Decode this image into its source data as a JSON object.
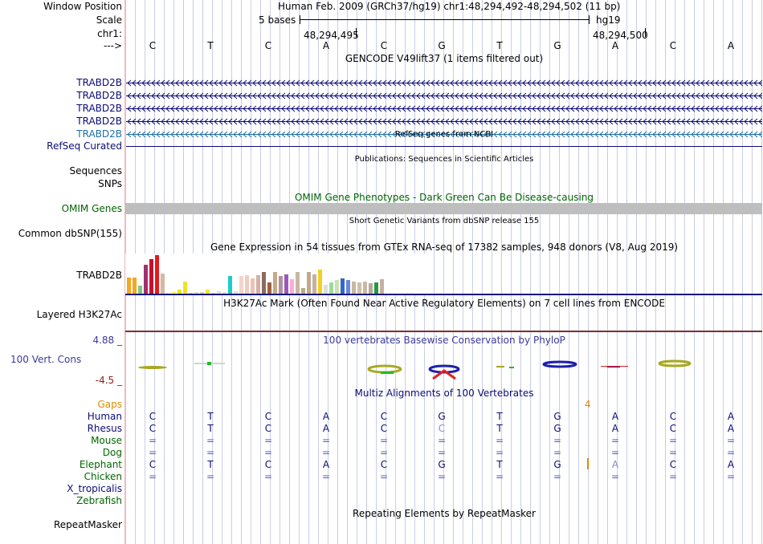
{
  "header": {
    "labels": {
      "window_position": "Window Position",
      "scale": "Scale",
      "chr": "chr1:",
      "arrow": "--->"
    },
    "assembly_position": "Human Feb. 2009 (GRCh37/hg19)   chr1:48,294,492-48,294,502 (11 bp)",
    "scale_text": "5 bases",
    "scale_db": "hg19",
    "coord_left": "48,294,495",
    "coord_right": "48,294,500",
    "sequence": [
      "C",
      "T",
      "C",
      "A",
      "C",
      "G",
      "T",
      "G",
      "A",
      "C",
      "A"
    ]
  },
  "gencode": {
    "title": "GENCODE V49lift37 (1 items filtered out)",
    "tracks": [
      {
        "label": "TRABD2B",
        "color": "#0c0c78"
      },
      {
        "label": "TRABD2B",
        "color": "#0c0c78"
      },
      {
        "label": "TRABD2B",
        "color": "#0c0c78"
      },
      {
        "label": "TRABD2B",
        "color": "#0c0c78"
      },
      {
        "label": "TRABD2B",
        "color": "#1e6fa8"
      }
    ]
  },
  "refseq": {
    "title": "RefSeq genes from NCBI",
    "label": "RefSeq Curated"
  },
  "publications": {
    "title": "Publications: Sequences in Scientific Articles",
    "label_sequences": "Sequences",
    "label_snps": "SNPs"
  },
  "omim": {
    "title": "OMIM Gene Phenotypes - Dark Green Can Be Disease-causing",
    "label": "OMIM Genes"
  },
  "dbsnp": {
    "title": "Short Genetic Variants from dbSNP release 155",
    "label": "Common dbSNP(155)"
  },
  "gtex": {
    "title": "Gene Expression in 54 tissues from GTEx RNA-seq of 17382 samples, 948 donors (V8, Aug 2019)",
    "label": "TRABD2B",
    "bars": [
      {
        "v": 0.42,
        "c": "#f5a623"
      },
      {
        "v": 0.42,
        "c": "#f5a623"
      },
      {
        "v": 0.2,
        "c": "#7fc97f"
      },
      {
        "v": 0.75,
        "c": "#a03070"
      },
      {
        "v": 0.9,
        "c": "#c8102e"
      },
      {
        "v": 1.0,
        "c": "#e41a1c"
      },
      {
        "v": 0.52,
        "c": "#d8b8a0"
      },
      {
        "v": 0.03,
        "c": "#eeeeee"
      },
      {
        "v": 0.06,
        "c": "#ffff66"
      },
      {
        "v": 0.1,
        "c": "#e6e600"
      },
      {
        "v": 0.32,
        "c": "#f0e030"
      },
      {
        "v": 0.03,
        "c": "#cccccc"
      },
      {
        "v": 0.05,
        "c": "#dddddd"
      },
      {
        "v": 0.05,
        "c": "#e0d0a0"
      },
      {
        "v": 0.1,
        "c": "#f0e040"
      },
      {
        "v": 0.03,
        "c": "#cccccc"
      },
      {
        "v": 0.06,
        "c": "#dddddd"
      },
      {
        "v": 0.05,
        "c": "#e0e0e0"
      },
      {
        "v": 0.46,
        "c": "#1ccdcd"
      },
      {
        "v": 0.06,
        "c": "#e0e0e0"
      },
      {
        "v": 0.46,
        "c": "#f4d4cc"
      },
      {
        "v": 0.48,
        "c": "#eeccc0"
      },
      {
        "v": 0.4,
        "c": "#f0c0b8"
      },
      {
        "v": 0.48,
        "c": "#d0b0a8"
      },
      {
        "v": 0.56,
        "c": "#8b6c5c"
      },
      {
        "v": 0.3,
        "c": "#a06040"
      },
      {
        "v": 0.56,
        "c": "#c8a888"
      },
      {
        "v": 0.45,
        "c": "#b090a0"
      },
      {
        "v": 0.5,
        "c": "#9b59b6"
      },
      {
        "v": 0.38,
        "c": "#ffaadd"
      },
      {
        "v": 0.56,
        "c": "#c8b8a0"
      },
      {
        "v": 0.15,
        "c": "#bbaa88"
      },
      {
        "v": 0.56,
        "c": "#c0a890"
      },
      {
        "v": 0.5,
        "c": "#c8b0a0"
      },
      {
        "v": 0.62,
        "c": "#f2d020"
      },
      {
        "v": 0.22,
        "c": "#dddddd"
      },
      {
        "v": 0.3,
        "c": "#99dd99"
      },
      {
        "v": 0.36,
        "c": "#cce0b0"
      },
      {
        "v": 0.4,
        "c": "#3366cc"
      },
      {
        "v": 0.36,
        "c": "#6688dd"
      },
      {
        "v": 0.32,
        "c": "#c8b8a0"
      },
      {
        "v": 0.3,
        "c": "#d0c0a8"
      },
      {
        "v": 0.32,
        "c": "#c8b8a8"
      },
      {
        "v": 0.28,
        "c": "#b8a898"
      },
      {
        "v": 0.3,
        "c": "#229944"
      },
      {
        "v": 0.38,
        "c": "#c8b0a0"
      }
    ]
  },
  "h3k27ac": {
    "title": "H3K27Ac Mark (Often Found Near Active Regulatory Elements) on 7 cell lines from ENCODE",
    "label": "Layered H3K27Ac"
  },
  "cons": {
    "title": "100 vertebrates Basewise Conservation by PhyloP",
    "label": "100 Vert. Cons",
    "ymax": "4.88 _",
    "ymin": "-4.5 _"
  },
  "multiz": {
    "title": "Multiz Alignments of 100 Vertebrates",
    "gap_count": "4",
    "species": [
      {
        "name": "Gaps",
        "color": "#e08a00",
        "bases": [
          "",
          "",
          "",
          "",
          "",
          "",
          "",
          "",
          "",
          "",
          ""
        ]
      },
      {
        "name": "Human",
        "color": "#0c0c78",
        "bases": [
          "C",
          "T",
          "C",
          "A",
          "C",
          "G",
          "T",
          "G",
          "A",
          "C",
          "A"
        ]
      },
      {
        "name": "Rhesus",
        "color": "#0c0c78",
        "bases": [
          "C",
          "T",
          "C",
          "A",
          "C",
          "C",
          "T",
          "G",
          "A",
          "C",
          "A"
        ]
      },
      {
        "name": "Mouse",
        "color": "#006600",
        "bases": [
          "=",
          "=",
          "=",
          "=",
          "=",
          "=",
          "=",
          "=",
          "=",
          "=",
          "="
        ]
      },
      {
        "name": "Dog",
        "color": "#006600",
        "bases": [
          "=",
          "=",
          "=",
          "=",
          "=",
          "=",
          "=",
          "=",
          "=",
          "=",
          "="
        ]
      },
      {
        "name": "Elephant",
        "color": "#006600",
        "bases": [
          "C",
          "T",
          "C",
          "A",
          "C",
          "G",
          "T",
          "G",
          "A",
          "C",
          "A"
        ]
      },
      {
        "name": "Chicken",
        "color": "#006600",
        "bases": [
          "=",
          "=",
          "=",
          "=",
          "=",
          "=",
          "=",
          "=",
          "=",
          "=",
          "="
        ]
      },
      {
        "name": "X_tropicalis",
        "color": "#0c0c78",
        "bases": [
          "",
          "",
          "",
          "",
          "",
          "",
          "",
          "",
          "",
          "",
          ""
        ]
      },
      {
        "name": "Zebrafish",
        "color": "#006600",
        "bases": [
          "",
          "",
          "",
          "",
          "",
          "",
          "",
          "",
          "",
          "",
          ""
        ]
      }
    ]
  },
  "repeatmasker": {
    "title": "Repeating Elements by RepeatMasker",
    "label": "RepeatMasker"
  }
}
